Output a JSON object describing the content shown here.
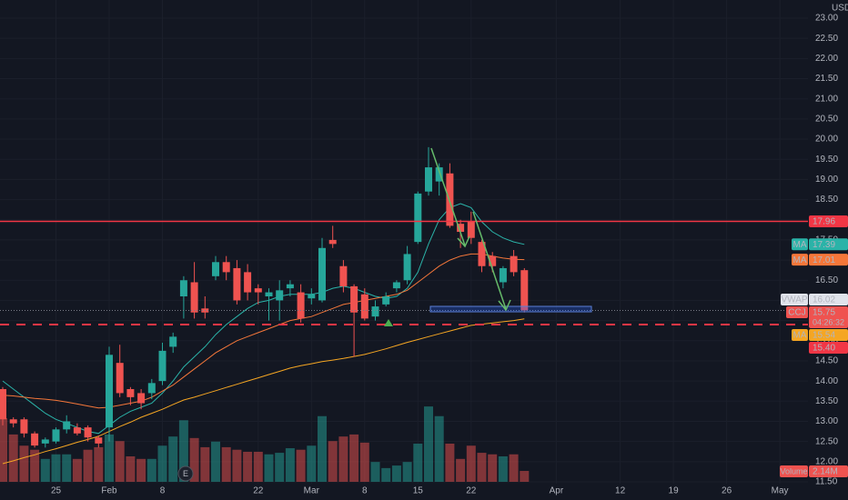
{
  "chart_data": {
    "type": "candlestick",
    "currency": "USD",
    "symbol": "CCJ",
    "countdown": "04:26:32",
    "earnings_marker": "E",
    "up_color": "#26a69a",
    "down_color": "#ef5350",
    "ylim": [
      11.5,
      23
    ],
    "yticks": [
      {
        "value": 11.5,
        "label": "11.50"
      },
      {
        "value": 12,
        "label": "12.00"
      },
      {
        "value": 12.5,
        "label": "12.50"
      },
      {
        "value": 13,
        "label": "13.00"
      },
      {
        "value": 13.5,
        "label": "13.50"
      },
      {
        "value": 14,
        "label": "14.00"
      },
      {
        "value": 14.5,
        "label": "14.50"
      },
      {
        "value": 15,
        "label": "15.00"
      },
      {
        "value": 15.5,
        "label": "15.50"
      },
      {
        "value": 16,
        "label": "16.00"
      },
      {
        "value": 16.5,
        "label": "16.50"
      },
      {
        "value": 17,
        "label": "17.00"
      },
      {
        "value": 17.5,
        "label": "17.50"
      },
      {
        "value": 18,
        "label": "18.00"
      },
      {
        "value": 18.5,
        "label": "18.50"
      },
      {
        "value": 19,
        "label": "19.00"
      },
      {
        "value": 19.5,
        "label": "19.50"
      },
      {
        "value": 20,
        "label": "20.00"
      },
      {
        "value": 20.5,
        "label": "20.50"
      },
      {
        "value": 21,
        "label": "21.00"
      },
      {
        "value": 21.5,
        "label": "21.50"
      },
      {
        "value": 22,
        "label": "22.00"
      },
      {
        "value": 22.5,
        "label": "22.50"
      },
      {
        "value": 23,
        "label": "23.00"
      }
    ],
    "categories": [
      null,
      null,
      null,
      null,
      null,
      "25",
      null,
      null,
      null,
      null,
      "Feb",
      null,
      null,
      null,
      null,
      "8",
      null,
      null,
      null,
      null,
      null,
      null,
      null,
      null,
      "22",
      null,
      null,
      null,
      null,
      "Mar",
      null,
      null,
      null,
      null,
      "8",
      null,
      null,
      null,
      null,
      "15",
      null,
      null,
      null,
      null,
      "22",
      null,
      null,
      null,
      null,
      null,
      null,
      null,
      "Apr",
      null,
      null,
      null,
      null,
      null,
      "12",
      null,
      null,
      null,
      null,
      "19",
      null,
      null,
      null,
      null,
      "26",
      null,
      null,
      null,
      null,
      "May",
      null,
      null
    ],
    "open": [
      13.8,
      13.05,
      13.05,
      12.7,
      12.45,
      12.5,
      12.8,
      12.85,
      12.85,
      12.6,
      12.85,
      14.45,
      13.8,
      13.7,
      13.7,
      14.0,
      14.85,
      16.1,
      16.45,
      15.8,
      16.6,
      16.95,
      16.8,
      16.7,
      16.3,
      16.1,
      16.0,
      16.3,
      16.2,
      16.05,
      16.0,
      17.5,
      16.85,
      16.35,
      16.15,
      15.6,
      15.9,
      16.3,
      16.5,
      17.45,
      18.7,
      18.95,
      19.15,
      17.9,
      17.95,
      17.45,
      17.1,
      16.45,
      17.1,
      16.75,
      null,
      null,
      null,
      null,
      null,
      null,
      null,
      null,
      null,
      null,
      null,
      null,
      null,
      null,
      null,
      null,
      null,
      null,
      null,
      null,
      null,
      null,
      null,
      null,
      null,
      null
    ],
    "high": [
      13.85,
      13.1,
      13.1,
      12.75,
      12.6,
      12.85,
      13.15,
      12.95,
      12.9,
      12.65,
      14.85,
      14.9,
      13.85,
      13.8,
      14.05,
      14.95,
      15.2,
      16.6,
      16.95,
      16.1,
      17.1,
      17.1,
      17.0,
      16.9,
      16.4,
      16.3,
      16.5,
      16.5,
      16.4,
      16.3,
      17.55,
      17.85,
      17.0,
      16.4,
      16.3,
      16.0,
      16.2,
      16.5,
      17.35,
      18.7,
      19.8,
      19.4,
      19.4,
      18.0,
      18.2,
      17.5,
      17.2,
      16.85,
      17.25,
      16.8,
      null,
      null,
      null,
      null,
      null,
      null,
      null,
      null,
      null,
      null,
      null,
      null,
      null,
      null,
      null,
      null,
      null,
      null,
      null,
      null,
      null,
      null,
      null,
      null,
      null,
      null
    ],
    "low": [
      12.9,
      12.85,
      12.6,
      12.35,
      12.35,
      12.45,
      12.7,
      12.65,
      12.5,
      12.35,
      12.5,
      13.6,
      13.4,
      13.3,
      13.55,
      13.9,
      14.7,
      15.55,
      15.55,
      15.55,
      16.5,
      16.5,
      15.9,
      16.0,
      15.9,
      15.5,
      15.5,
      16.1,
      15.45,
      15.9,
      15.95,
      17.3,
      16.2,
      14.6,
      15.5,
      15.5,
      15.85,
      16.2,
      16.4,
      17.4,
      18.6,
      18.6,
      17.8,
      17.3,
      17.4,
      16.7,
      16.7,
      16.3,
      16.6,
      15.7,
      null,
      null,
      null,
      null,
      null,
      null,
      null,
      null,
      null,
      null,
      null,
      null,
      null,
      null,
      null,
      null,
      null,
      null,
      null,
      null,
      null,
      null,
      null,
      null,
      null,
      null
    ],
    "close": [
      13.05,
      12.95,
      12.7,
      12.4,
      12.55,
      12.8,
      13.0,
      12.7,
      12.6,
      12.45,
      14.65,
      13.7,
      13.6,
      13.45,
      13.95,
      14.75,
      15.1,
      16.5,
      15.7,
      15.7,
      16.95,
      16.7,
      16.0,
      16.2,
      16.2,
      16.2,
      16.25,
      16.4,
      15.55,
      16.15,
      17.3,
      17.4,
      16.35,
      15.7,
      15.55,
      15.85,
      16.1,
      16.45,
      17.15,
      18.65,
      19.3,
      19.3,
      17.85,
      17.7,
      17.55,
      16.85,
      16.85,
      16.8,
      16.7,
      15.75,
      null,
      null,
      null,
      null,
      null,
      null,
      null,
      null,
      null,
      null,
      null,
      null,
      null,
      null,
      null,
      null,
      null,
      null,
      null,
      null,
      null,
      null,
      null,
      null,
      null,
      null
    ],
    "volume": {
      "name": "Volume",
      "values": [
        12.5,
        9.3,
        7.1,
        6.3,
        4.5,
        5.4,
        5.4,
        4.5,
        6.3,
        6.8,
        9.3,
        8.0,
        5.0,
        4.5,
        4.5,
        7.1,
        8.9,
        12.1,
        8.6,
        6.8,
        7.9,
        6.8,
        6.3,
        5.9,
        5.9,
        5.4,
        5.7,
        6.6,
        6.3,
        7.1,
        12.9,
        8.0,
        8.9,
        9.3,
        7.7,
        3.9,
        2.7,
        3.2,
        3.9,
        7.5,
        14.8,
        12.9,
        7.5,
        4.5,
        7.1,
        5.7,
        5.4,
        5.0,
        5.4,
        2.14,
        null,
        null,
        null,
        null,
        null,
        null,
        null,
        null,
        null,
        null,
        null,
        null,
        null,
        null,
        null,
        null,
        null,
        null,
        null,
        null,
        null,
        null,
        null,
        null,
        null,
        null
      ],
      "value_labels": [
        null,
        null,
        null,
        null,
        null,
        null,
        null,
        null,
        null,
        null,
        null,
        null,
        null,
        null,
        null,
        null,
        null,
        null,
        null,
        null,
        null,
        null,
        null,
        null,
        null,
        null,
        null,
        null,
        null,
        null,
        null,
        null,
        null,
        null,
        null,
        null,
        null,
        null,
        null,
        null,
        null,
        null,
        null,
        null,
        null,
        null,
        null,
        null,
        null,
        "2.14M",
        null,
        null,
        null,
        null,
        null,
        null,
        null,
        null,
        null,
        null,
        null,
        null,
        null,
        null,
        null,
        null,
        null,
        null,
        null,
        null,
        null,
        null,
        null,
        null,
        null,
        null
      ]
    },
    "series": [
      {
        "name": "MA",
        "color": "#2bb3a8",
        "values": [
          14.0,
          13.8,
          13.6,
          13.4,
          13.2,
          13.05,
          12.95,
          12.85,
          12.75,
          12.7,
          12.9,
          13.1,
          13.25,
          13.35,
          13.45,
          13.7,
          14.0,
          14.35,
          14.6,
          14.85,
          15.15,
          15.4,
          15.6,
          15.8,
          15.95,
          16.0,
          16.1,
          16.15,
          16.15,
          16.15,
          16.2,
          16.3,
          16.35,
          16.3,
          16.2,
          16.1,
          16.05,
          16.1,
          16.3,
          16.7,
          17.4,
          18.0,
          18.3,
          18.4,
          18.3,
          17.95,
          17.7,
          17.55,
          17.45,
          17.39,
          null,
          null,
          null,
          null,
          null,
          null,
          null,
          null,
          null,
          null,
          null,
          null,
          null,
          null,
          null,
          null,
          null,
          null,
          null,
          null,
          null,
          null,
          null,
          null,
          null,
          null
        ]
      },
      {
        "name": "MA",
        "color": "#f5773a",
        "values": [
          13.65,
          13.63,
          13.6,
          13.57,
          13.55,
          13.52,
          13.48,
          13.43,
          13.38,
          13.33,
          13.35,
          13.4,
          13.45,
          13.5,
          13.6,
          13.75,
          13.9,
          14.1,
          14.3,
          14.5,
          14.7,
          14.85,
          15.0,
          15.1,
          15.2,
          15.3,
          15.4,
          15.5,
          15.55,
          15.6,
          15.7,
          15.8,
          15.9,
          15.95,
          16.0,
          16.05,
          16.1,
          16.15,
          16.25,
          16.45,
          16.65,
          16.85,
          17.0,
          17.1,
          17.15,
          17.15,
          17.1,
          17.05,
          17.02,
          17.01,
          null,
          null,
          null,
          null,
          null,
          null,
          null,
          null,
          null,
          null,
          null,
          null,
          null,
          null,
          null,
          null,
          null,
          null,
          null,
          null,
          null,
          null,
          null,
          null,
          null,
          null
        ]
      },
      {
        "name": "MA",
        "color": "#f5a623",
        "values": [
          11.95,
          12.02,
          12.1,
          12.17,
          12.25,
          12.32,
          12.4,
          12.48,
          12.55,
          12.63,
          12.75,
          12.87,
          12.98,
          13.1,
          13.2,
          13.3,
          13.42,
          13.53,
          13.6,
          13.68,
          13.76,
          13.84,
          13.92,
          14.0,
          14.08,
          14.16,
          14.24,
          14.32,
          14.38,
          14.43,
          14.48,
          14.52,
          14.56,
          14.61,
          14.66,
          14.73,
          14.8,
          14.88,
          14.96,
          15.03,
          15.1,
          15.17,
          15.24,
          15.31,
          15.38,
          15.41,
          15.44,
          15.47,
          15.5,
          15.54,
          null,
          null,
          null,
          null,
          null,
          null,
          null,
          null,
          null,
          null,
          null,
          null,
          null,
          null,
          null,
          null,
          null,
          null,
          null,
          null,
          null,
          null,
          null,
          null,
          null,
          null
        ]
      }
    ],
    "vwap": {
      "name": "VWAP",
      "value": 16.02
    },
    "horizontal_lines": [
      {
        "value": 17.96,
        "color": "#f23645",
        "style": "solid"
      },
      {
        "value": 15.4,
        "label": "15.40",
        "color": "#f23645",
        "style": "dashed"
      }
    ]
  }
}
